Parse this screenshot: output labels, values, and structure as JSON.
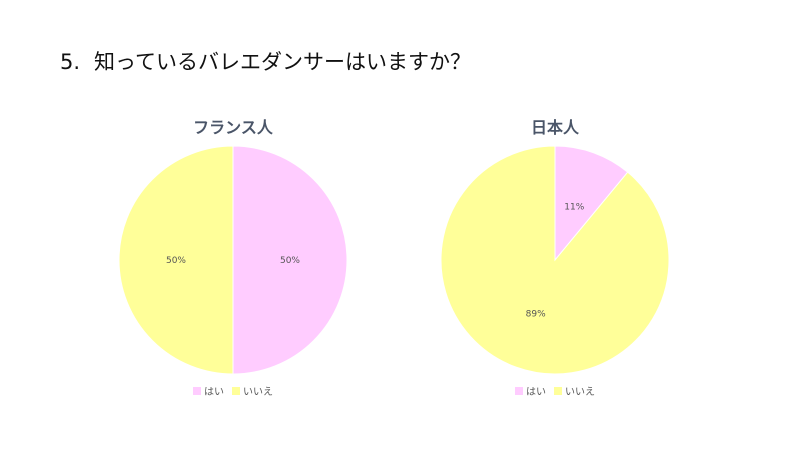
{
  "question": {
    "number": "5.",
    "text": "知っているバレエダンサーはいますか？"
  },
  "colors": {
    "yes": "#ffccff",
    "no": "#ffff99"
  },
  "chart_data": [
    {
      "type": "pie",
      "title": "フランス人",
      "categories": [
        "はい",
        "いいえ"
      ],
      "values": [
        50,
        50
      ],
      "labels": [
        "50%",
        "50%"
      ],
      "legend": "bottom"
    },
    {
      "type": "pie",
      "title": "日本人",
      "categories": [
        "はい",
        "いいえ"
      ],
      "values": [
        11,
        89
      ],
      "labels": [
        "11%",
        "89%"
      ],
      "legend": "bottom"
    }
  ]
}
